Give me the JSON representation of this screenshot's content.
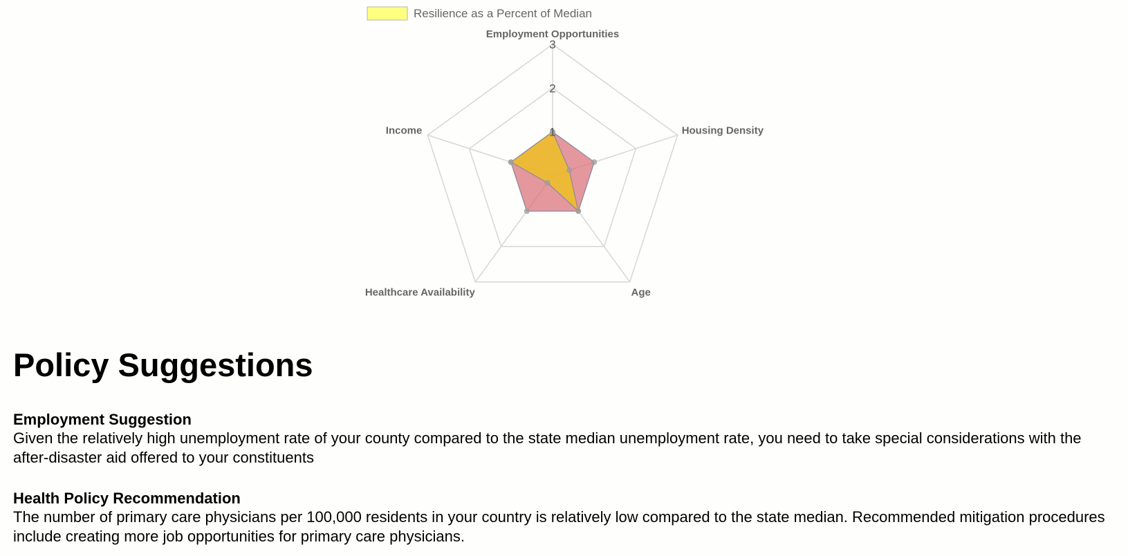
{
  "chart_data": {
    "type": "radar",
    "legend": {
      "label": "Resilience as a Percent of Median",
      "color": "#ffff80",
      "placement": "top"
    },
    "axes": [
      "Employment Opportunities",
      "Housing Density",
      "Age",
      "Healthcare Availability",
      "Income"
    ],
    "scale": {
      "min": 0,
      "max": 3,
      "ticks": [
        1,
        2,
        3
      ]
    },
    "series": [
      {
        "name": "Resilience as a Percent of Median",
        "color": "#ffff80",
        "values": [
          1.0,
          0.4,
          1.0,
          0.2,
          1.0
        ]
      },
      {
        "color": "#d9707a",
        "values": [
          1.0,
          1.0,
          1.0,
          1.0,
          1.0
        ]
      }
    ],
    "grid": true
  },
  "page": {
    "title": "Policy Suggestions",
    "sections": [
      {
        "heading": "Employment Suggestion",
        "body": "Given the relatively high unemployment rate of your county compared to the state median unemployment rate, you need to take special considerations with the after-disaster aid offered to your constituents"
      },
      {
        "heading": "Health Policy Recommendation",
        "body": "The number of primary care physicians per 100,000 residents in your country is relatively low compared to the state median. Recommended mitigation procedures include creating more job opportunities for primary care physicians."
      }
    ]
  }
}
